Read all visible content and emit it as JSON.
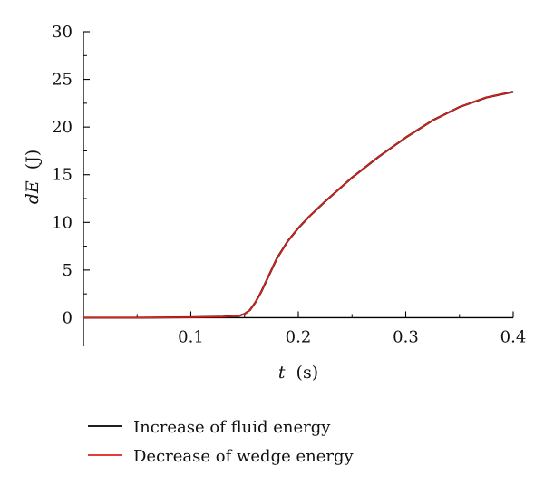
{
  "chart_data": {
    "type": "line",
    "title": "",
    "xlabel_var": "t",
    "xlabel_unit": "(s)",
    "ylabel_var": "dE",
    "ylabel_unit": "(J)",
    "xlim": [
      0,
      0.4
    ],
    "ylim": [
      -3,
      30
    ],
    "x_ticks": [
      0.1,
      0.2,
      0.3,
      0.4
    ],
    "x_tick_labels": [
      "0.1",
      "0.2",
      "0.3",
      "0.4"
    ],
    "y_ticks": [
      0,
      5,
      10,
      15,
      20,
      25,
      30
    ],
    "y_tick_labels": [
      "0",
      "5",
      "10",
      "15",
      "20",
      "25",
      "30"
    ],
    "grid": false,
    "legend_position": "bottom",
    "series": [
      {
        "name": "Increase of fluid energy",
        "color": "#000000",
        "x": [
          0,
          0.05,
          0.1,
          0.13,
          0.145,
          0.15,
          0.155,
          0.16,
          0.165,
          0.17,
          0.175,
          0.18,
          0.19,
          0.2,
          0.21,
          0.225,
          0.25,
          0.275,
          0.3,
          0.325,
          0.35,
          0.375,
          0.4
        ],
        "y": [
          0,
          0,
          0.05,
          0.1,
          0.2,
          0.4,
          0.8,
          1.6,
          2.6,
          3.8,
          5.0,
          6.2,
          8.0,
          9.4,
          10.6,
          12.2,
          14.7,
          16.9,
          18.9,
          20.7,
          22.1,
          23.1,
          23.7
        ]
      },
      {
        "name": "Decrease of wedge energy",
        "color": "#e0201b",
        "x": [
          0,
          0.05,
          0.1,
          0.13,
          0.145,
          0.15,
          0.155,
          0.16,
          0.165,
          0.17,
          0.175,
          0.18,
          0.19,
          0.2,
          0.21,
          0.225,
          0.25,
          0.275,
          0.3,
          0.325,
          0.35,
          0.375,
          0.4
        ],
        "y": [
          0,
          0,
          0.05,
          0.1,
          0.2,
          0.4,
          0.8,
          1.6,
          2.6,
          3.8,
          5.0,
          6.2,
          8.0,
          9.4,
          10.6,
          12.2,
          14.7,
          16.9,
          18.9,
          20.7,
          22.1,
          23.1,
          23.7
        ]
      }
    ]
  }
}
